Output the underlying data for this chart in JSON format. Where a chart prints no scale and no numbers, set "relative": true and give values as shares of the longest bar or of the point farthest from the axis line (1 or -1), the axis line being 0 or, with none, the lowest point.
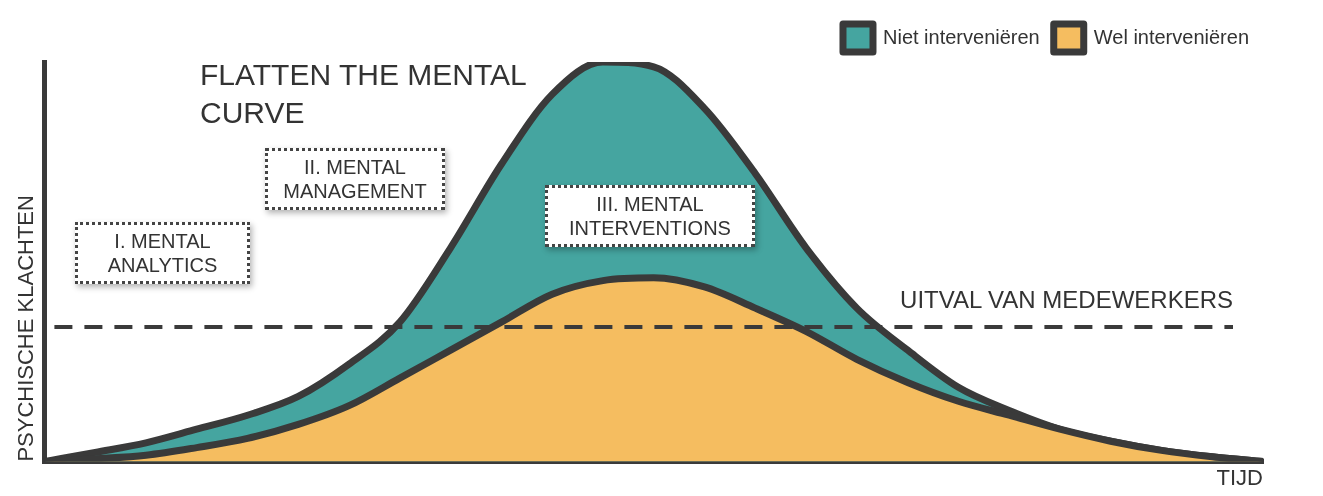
{
  "chart_data": {
    "type": "area",
    "title": "FLATTEN THE MENTAL CURVE",
    "xlabel": "TIJD",
    "ylabel": "PSYCHISCHE KLACHTEN",
    "relative": true,
    "legend": "top right",
    "grid": false,
    "categories": [
      null,
      null,
      null,
      null,
      null,
      null,
      null,
      null,
      null,
      null,
      null,
      null,
      null,
      null,
      null,
      null,
      null,
      null,
      null,
      null,
      null,
      null,
      null,
      null,
      null
    ],
    "series": [
      {
        "name": "Niet interveniëren",
        "color": "#45a5a0",
        "values": [
          0,
          0.023,
          0.047,
          0.081,
          0.116,
          0.163,
          0.244,
          0.349,
          0.535,
          0.744,
          0.919,
          1,
          0.988,
          0.884,
          0.721,
          0.535,
          0.384,
          0.279,
          0.186,
          0.128,
          0.081,
          0.051,
          0.028,
          0.012,
          0
        ]
      },
      {
        "name": "Wel interveniëren",
        "color": "#f5bd60",
        "values": [
          0,
          0.007,
          0.016,
          0.035,
          0.058,
          0.093,
          0.14,
          0.209,
          0.279,
          0.349,
          0.419,
          0.453,
          0.46,
          0.437,
          0.384,
          0.326,
          0.256,
          0.198,
          0.151,
          0.116,
          0.081,
          0.051,
          0.028,
          0.012,
          0
        ]
      }
    ],
    "ref_lines": [
      {
        "axis": "y",
        "value": 0.337,
        "label": "UITVAL VAN MEDEWERKERS",
        "line_style": "dashed",
        "color": "#3a3a3a"
      }
    ],
    "annotations": [
      "I. MENTAL ANALYTICS",
      "II. MENTAL MANAGEMENT",
      "III. MENTAL INTERVENTIONS"
    ]
  }
}
